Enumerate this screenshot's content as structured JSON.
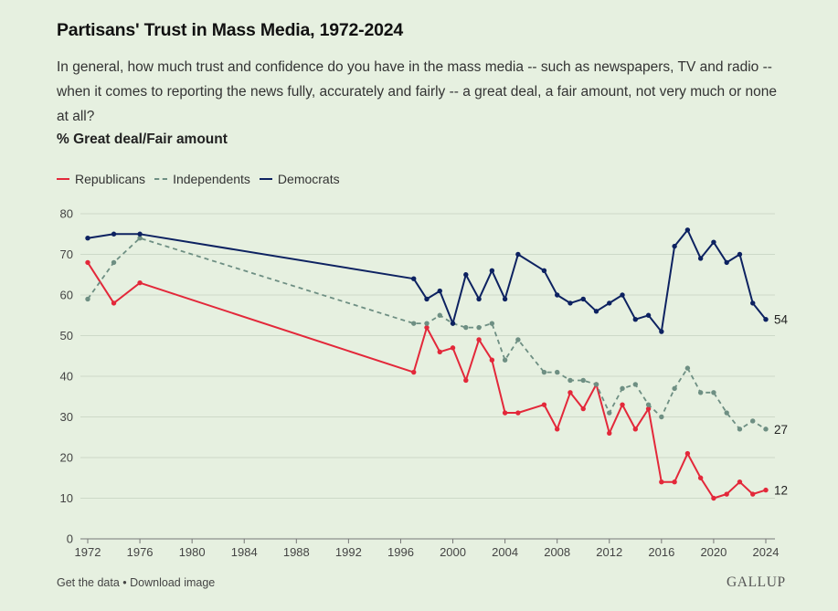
{
  "header": {
    "title": "Partisans' Trust in Mass Media, 1972-2024",
    "subtitle": "In general, how much trust and confidence do you have in the mass media -- such as newspapers, TV and radio -- when it comes to reporting the news fully, accurately and fairly -- a great deal, a fair amount, not very much or none at all?",
    "measure": "% Great deal/Fair amount"
  },
  "footer": {
    "get_data": "Get the data",
    "separator": " • ",
    "download": "Download image",
    "logo": "GALLUP"
  },
  "colors": {
    "republicans": "#e3283a",
    "independents": "#6e8f83",
    "democrats": "#0d2261",
    "grid": "#cdd9c8",
    "axis": "#777777"
  },
  "chart_data": {
    "type": "line",
    "xlim": [
      1972,
      2024
    ],
    "ylim": [
      0,
      80
    ],
    "x_ticks": [
      1972,
      1976,
      1980,
      1984,
      1988,
      1992,
      1996,
      2000,
      2004,
      2008,
      2012,
      2016,
      2020,
      2024
    ],
    "y_ticks": [
      0,
      10,
      20,
      30,
      40,
      50,
      60,
      70,
      80
    ],
    "grid": "horizontal",
    "legend": "top-left",
    "series": [
      {
        "name": "Republicans",
        "style": "solid",
        "color": "#e3283a",
        "end_label": "12",
        "x": [
          1972,
          1974,
          1976,
          1997,
          1998,
          1999,
          2000,
          2001,
          2002,
          2003,
          2004,
          2005,
          2007,
          2008,
          2009,
          2010,
          2011,
          2012,
          2013,
          2014,
          2015,
          2016,
          2017,
          2018,
          2019,
          2020,
          2021,
          2022,
          2023,
          2024
        ],
        "values": [
          68,
          58,
          63,
          41,
          52,
          46,
          47,
          39,
          49,
          44,
          31,
          31,
          33,
          27,
          36,
          32,
          38,
          26,
          33,
          27,
          32,
          14,
          14,
          21,
          15,
          10,
          11,
          14,
          11,
          12
        ]
      },
      {
        "name": "Independents",
        "style": "dashed",
        "color": "#6e8f83",
        "end_label": "27",
        "x": [
          1972,
          1974,
          1976,
          1997,
          1998,
          1999,
          2000,
          2001,
          2002,
          2003,
          2004,
          2005,
          2007,
          2008,
          2009,
          2010,
          2011,
          2012,
          2013,
          2014,
          2015,
          2016,
          2017,
          2018,
          2019,
          2020,
          2021,
          2022,
          2023,
          2024
        ],
        "values": [
          59,
          68,
          74,
          53,
          53,
          55,
          53,
          52,
          52,
          53,
          44,
          49,
          41,
          41,
          39,
          39,
          38,
          31,
          37,
          38,
          33,
          30,
          37,
          42,
          36,
          36,
          31,
          27,
          29,
          27
        ]
      },
      {
        "name": "Democrats",
        "style": "solid",
        "color": "#0d2261",
        "end_label": "54",
        "x": [
          1972,
          1974,
          1976,
          1997,
          1998,
          1999,
          2000,
          2001,
          2002,
          2003,
          2004,
          2005,
          2007,
          2008,
          2009,
          2010,
          2011,
          2012,
          2013,
          2014,
          2015,
          2016,
          2017,
          2018,
          2019,
          2020,
          2021,
          2022,
          2023,
          2024
        ],
        "values": [
          74,
          75,
          75,
          64,
          59,
          61,
          53,
          65,
          59,
          66,
          59,
          70,
          66,
          60,
          58,
          59,
          56,
          58,
          60,
          54,
          55,
          51,
          72,
          76,
          69,
          73,
          68,
          70,
          58,
          54
        ]
      }
    ]
  }
}
